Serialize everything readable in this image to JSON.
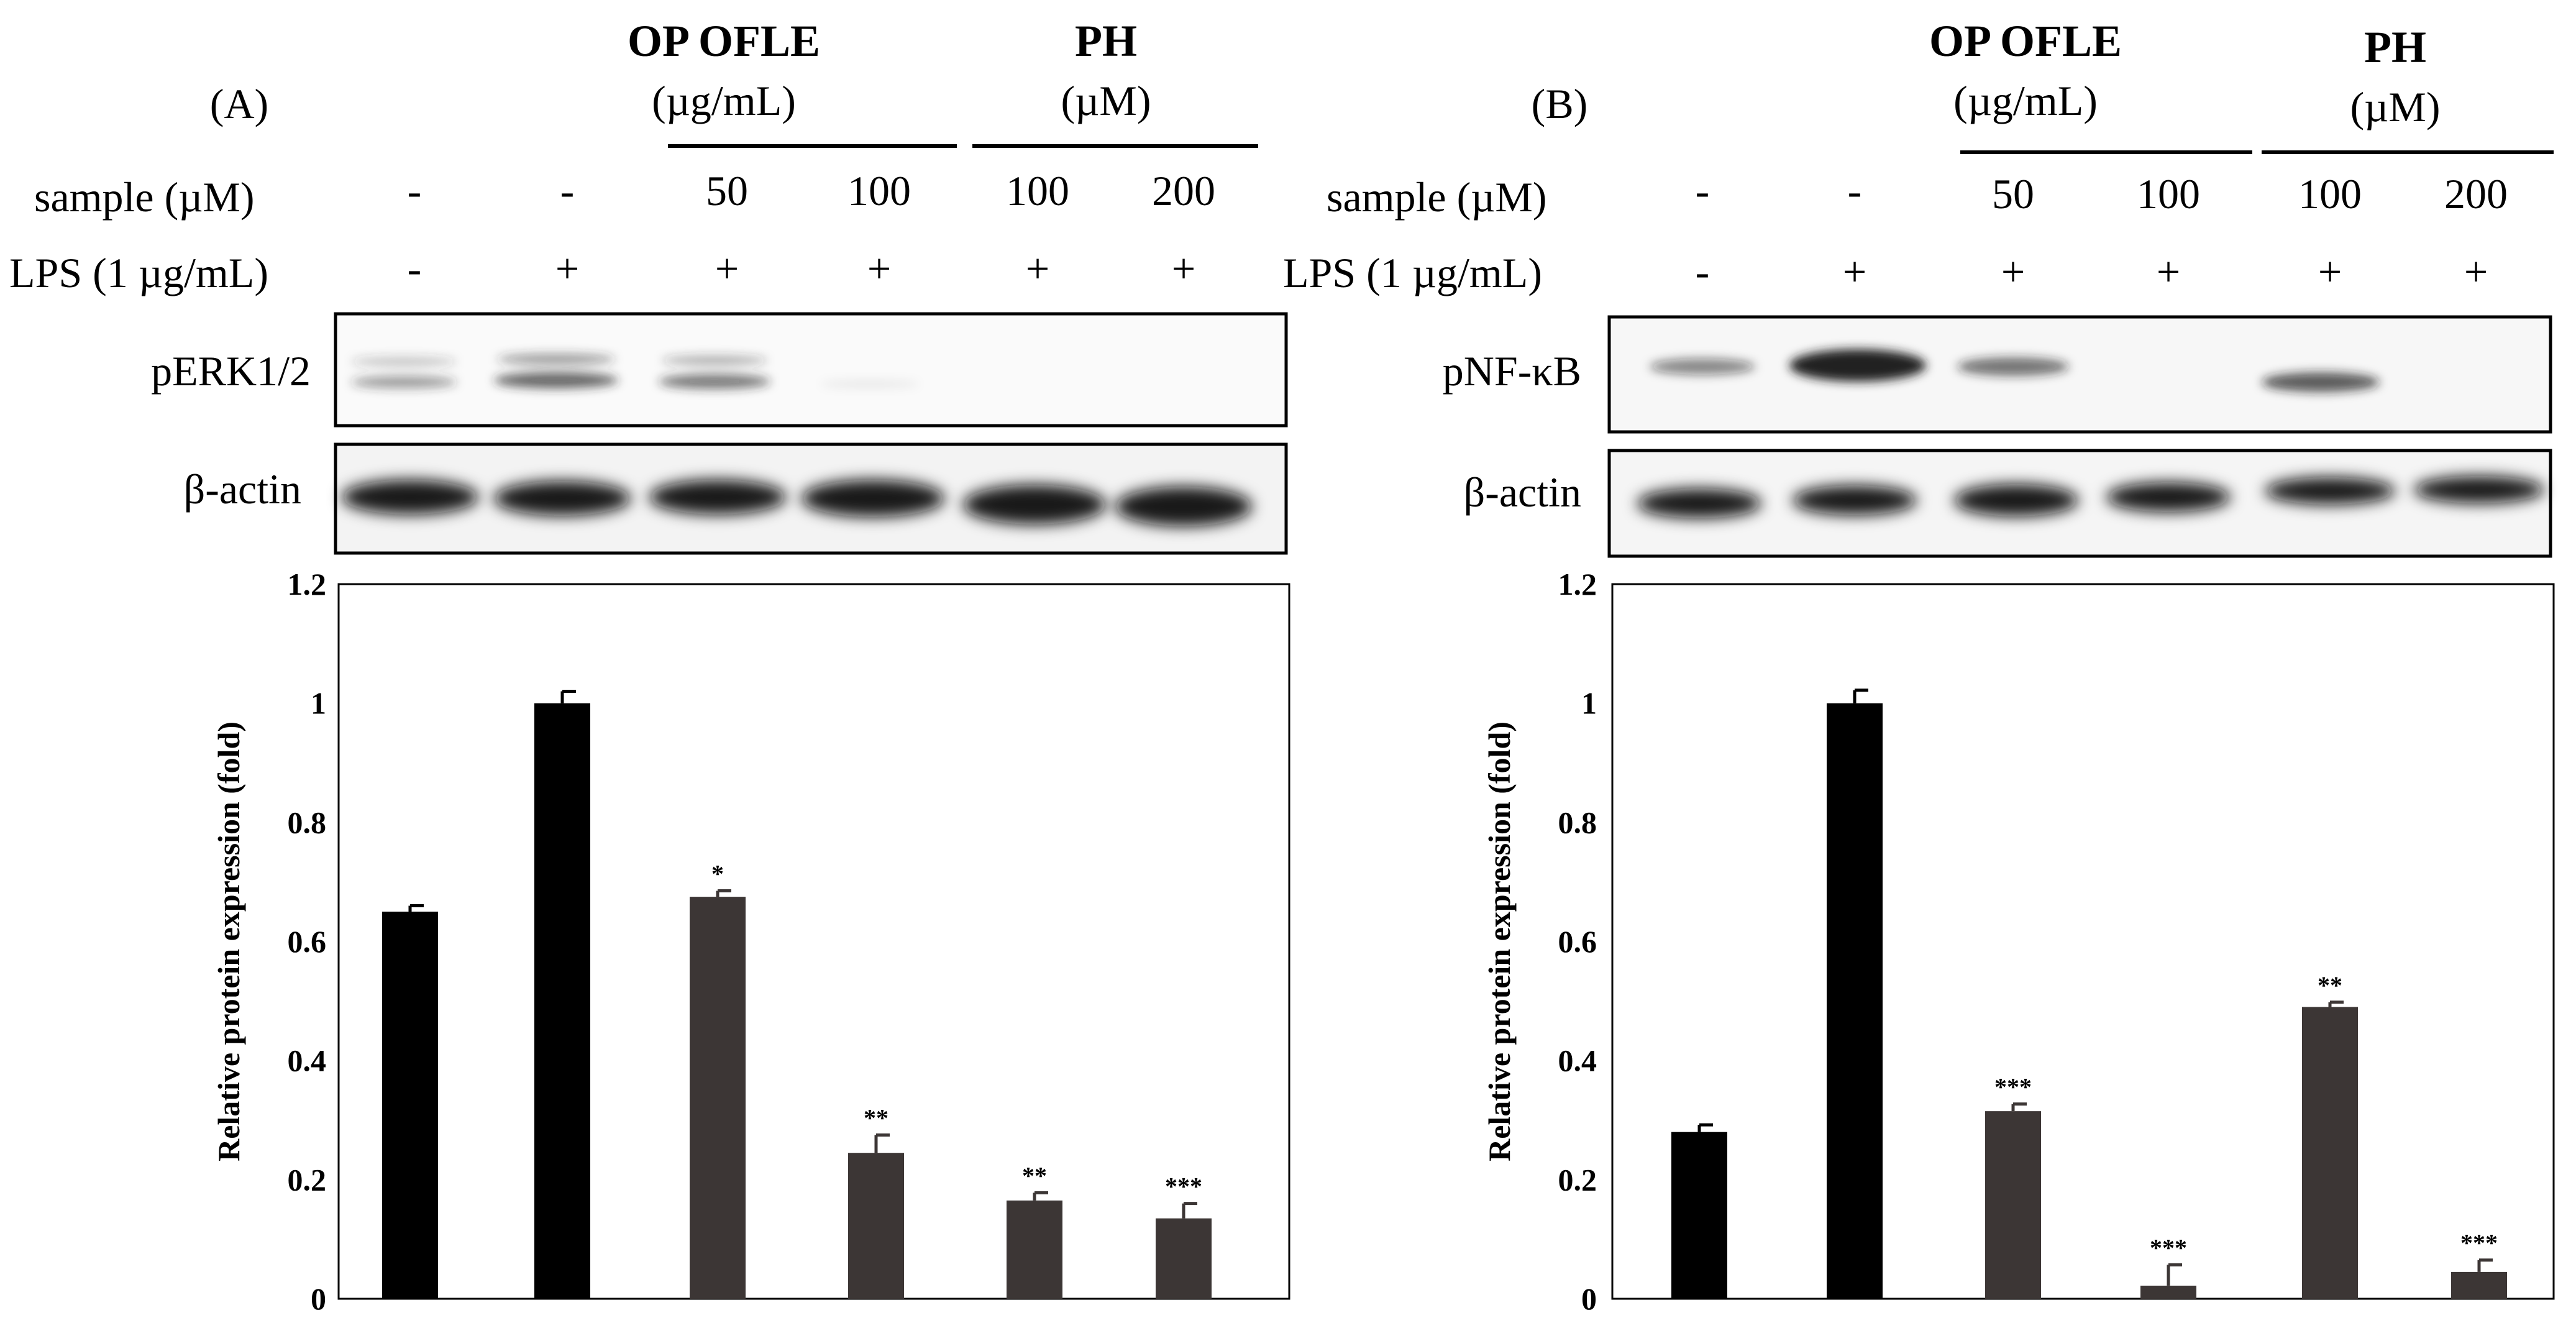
{
  "panels": [
    {
      "label": "(A)",
      "header": {
        "group1": {
          "title": "OP OFLE",
          "unit": "(µg/mL)"
        },
        "group2": {
          "title": "PH",
          "unit": "(µM)"
        },
        "sample_label": "sample (µM)",
        "lps_label": "LPS (1 µg/mL)",
        "sample_values": [
          "-",
          "-",
          "50",
          "100",
          "100",
          "200"
        ],
        "lps_values": [
          "-",
          "+",
          "+",
          "+",
          "+",
          "+"
        ]
      },
      "blots": {
        "target_label": "pERK1/2",
        "control_label": "β-actin"
      }
    },
    {
      "label": "(B)",
      "header": {
        "group1": {
          "title": "OP OFLE",
          "unit": "(µg/mL)"
        },
        "group2": {
          "title": "PH",
          "unit": "(µM)"
        },
        "sample_label": "sample (µM)",
        "lps_label": "LPS (1 µg/mL)",
        "sample_values": [
          "-",
          "-",
          "50",
          "100",
          "100",
          "200"
        ],
        "lps_values": [
          "-",
          "+",
          "+",
          "+",
          "+",
          "+"
        ]
      },
      "blots": {
        "target_label": "pNF-κB",
        "control_label": "β-actin"
      }
    }
  ],
  "colors": {
    "control_bar": "#000000",
    "treated_bar": "#3c3635",
    "axis": "#000000"
  },
  "chart_data": [
    {
      "type": "bar",
      "title": "",
      "xlabel": "",
      "ylabel": "Relative protein expression (fold)",
      "ylim": [
        0,
        1.2
      ],
      "yticks": [
        "0",
        "0.2",
        "0.4",
        "0.6",
        "0.8",
        "1",
        "1.2"
      ],
      "grid": false,
      "values": [
        0.65,
        1.0,
        0.675,
        0.245,
        0.165,
        0.135
      ],
      "errors": [
        0.01,
        0.02,
        0.01,
        0.03,
        0.013,
        0.025
      ],
      "significance": [
        "",
        "",
        "*",
        "**",
        "**",
        "***"
      ]
    },
    {
      "type": "bar",
      "title": "",
      "xlabel": "",
      "ylabel": "Relative protein expression (fold)",
      "ylim": [
        0,
        1.2
      ],
      "yticks": [
        "0",
        "0.2",
        "0.4",
        "0.6",
        "0.8",
        "1",
        "1.2"
      ],
      "grid": false,
      "values": [
        0.28,
        1.0,
        0.315,
        0.022,
        0.49,
        0.045
      ],
      "errors": [
        0.012,
        0.022,
        0.012,
        0.035,
        0.008,
        0.02
      ],
      "significance": [
        "",
        "",
        "***",
        "***",
        "**",
        "***"
      ]
    }
  ]
}
